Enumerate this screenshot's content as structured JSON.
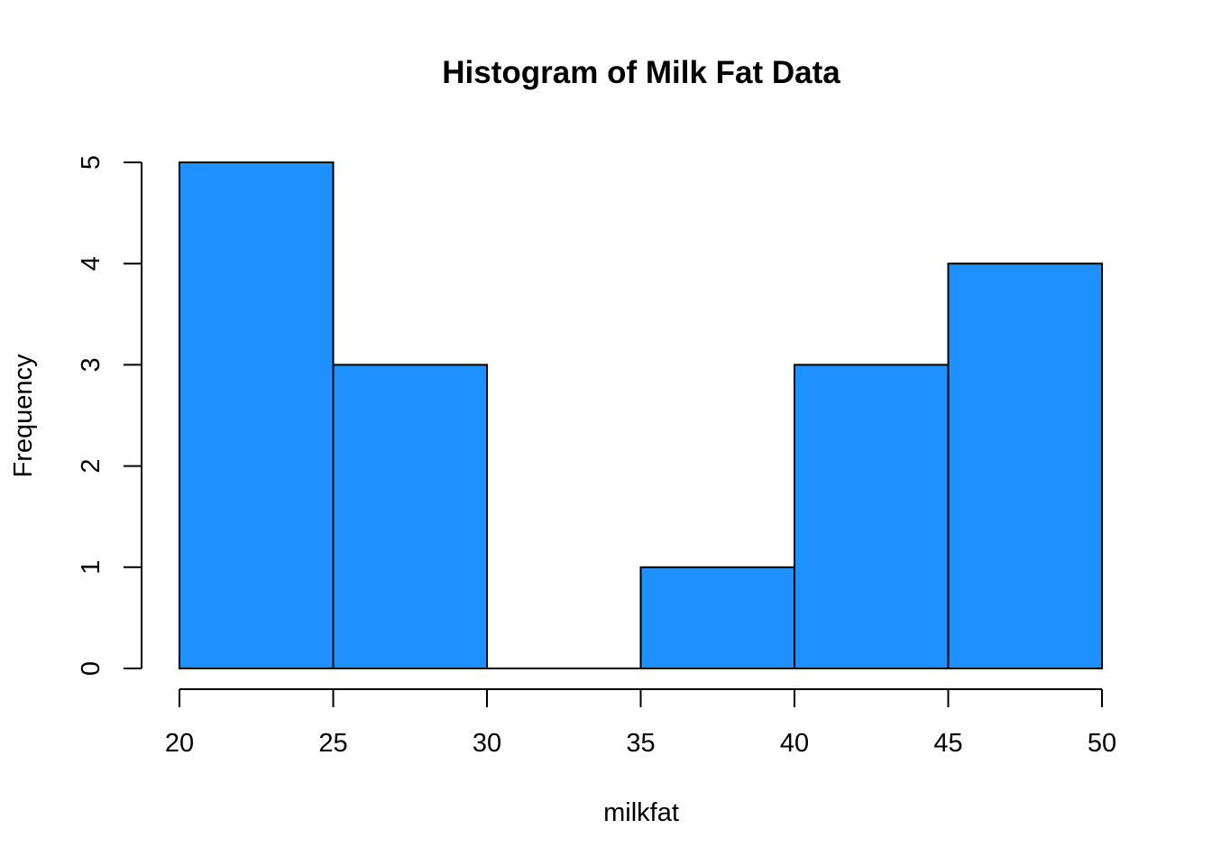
{
  "chart_data": {
    "type": "bar",
    "title": "Histogram of Milk Fat Data",
    "xlabel": "milkfat",
    "ylabel": "Frequency",
    "bins": [
      {
        "from": 20,
        "to": 25,
        "count": 5
      },
      {
        "from": 25,
        "to": 30,
        "count": 3
      },
      {
        "from": 30,
        "to": 35,
        "count": 0
      },
      {
        "from": 35,
        "to": 40,
        "count": 1
      },
      {
        "from": 40,
        "to": 45,
        "count": 3
      },
      {
        "from": 45,
        "to": 50,
        "count": 4
      }
    ],
    "xlim": [
      20,
      50
    ],
    "ylim": [
      0,
      5
    ],
    "x_ticks": [
      "20",
      "25",
      "30",
      "35",
      "40",
      "45",
      "50"
    ],
    "y_ticks": [
      "0",
      "1",
      "2",
      "3",
      "4",
      "5"
    ],
    "bar_color": "#1E90FF",
    "grid": false
  }
}
